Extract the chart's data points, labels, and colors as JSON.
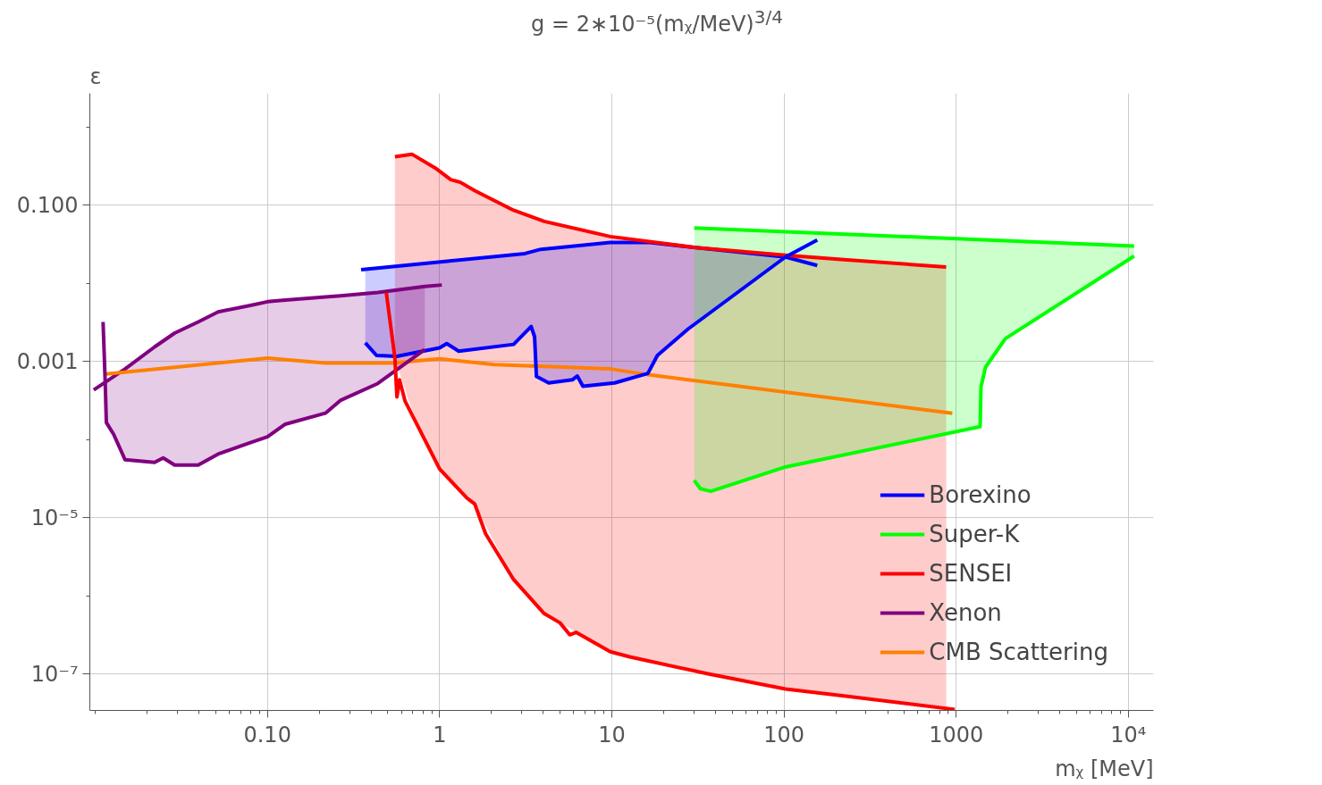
{
  "chart_data": {
    "type": "line",
    "title": "g = 2∗10⁻⁵(mᵪ/MeV)$^{3/4}$",
    "xlabel": "mᵪ [MeV]",
    "ylabel": "ε",
    "log": "xy",
    "grid": true,
    "legend": "bottom right",
    "line_style": "solid",
    "marker": "none",
    "xlim": [
      0.0093,
      14000
    ],
    "ylim": [
      3.4e-08,
      2.7
    ],
    "xticks": [
      {
        "value": 0.1,
        "label": "0.10"
      },
      1,
      10,
      100,
      1000,
      {
        "value": 10000,
        "label": "10⁴"
      }
    ],
    "yticks": [
      {
        "value": 1e-07,
        "label": "10⁻⁷"
      },
      {
        "value": 1e-05,
        "label": "10⁻⁵"
      },
      {
        "value": 0.001,
        "label": "0.001"
      },
      {
        "value": 0.1,
        "label": "0.100"
      }
    ],
    "series": [
      {
        "name": "Borexino",
        "color": "#0000ff",
        "x": [
          0.35,
          1.11,
          3.13,
          3.87,
          9.8,
          16.6,
          30.8,
          102,
          156
        ],
        "values": [
          0.0149,
          0.0192,
          0.024,
          0.0272,
          0.0333,
          0.0333,
          0.0286,
          0.0217,
          0.0169
        ]
      },
      {
        "name": "Super-K",
        "color": "#00ff00",
        "x": [
          30.1,
          10800
        ],
        "values": [
          0.051,
          0.03
        ]
      },
      {
        "name": "SENSEI",
        "color": "#ff0000",
        "x": [
          0.55,
          0.69,
          0.94,
          1.16,
          1.32,
          1.6,
          2.69,
          4.05,
          9.8,
          30.8,
          102,
          223,
          875
        ],
        "values": [
          0.417,
          0.449,
          0.3,
          0.212,
          0.196,
          0.153,
          0.086,
          0.062,
          0.0396,
          0.0286,
          0.0229,
          0.0201,
          0.0161
        ],
        "lower": [
          0.0011,
          0.00024,
          5.4e-05,
          2.9e-05,
          2.2e-05,
          1.49e-05,
          1.61e-06,
          5.9e-07,
          1.92e-07,
          1.07e-07,
          6.4e-08,
          5.2e-08,
          3.7e-08
        ],
        "upper": [
          0.417,
          0.449,
          0.3,
          0.212,
          0.196,
          0.153,
          0.086,
          0.062,
          0.0396,
          0.0286,
          0.0229,
          0.0201,
          0.0161
        ]
      },
      {
        "name": "Xenon",
        "color": "#800080",
        "x": [
          0.0098,
          0.0149,
          0.0221,
          0.0289,
          0.0396,
          0.0517,
          0.0796,
          0.1,
          0.127,
          0.217,
          0.265,
          0.437,
          0.82,
          1.03
        ],
        "values": [
          0.00043,
          0.0008,
          0.00153,
          0.0023,
          0.0032,
          0.0043,
          0.0052,
          0.0058,
          0.0061,
          0.0067,
          0.0069,
          0.0076,
          0.0091,
          0.0095
        ]
      },
      {
        "name": "CMB Scattering",
        "color": "#ff8000",
        "x": [
          0.0116,
          0.0289,
          0.1,
          0.217,
          0.533,
          1.0,
          2.08,
          9.8,
          16.6,
          949
        ],
        "values": [
          0.00069,
          0.00084,
          0.0011,
          0.00095,
          0.00095,
          0.00108,
          0.00091,
          0.0008,
          0.00067,
          0.000217
        ]
      },
      {
        "color": "#0000ff",
        "x": [
          0.37,
          0.43,
          0.565,
          1,
          1.1,
          1.29,
          2.69,
          3.4,
          3.56,
          3.65,
          4.3,
          5.9,
          6.3,
          6.8,
          10.4,
          16.2,
          18.4,
          27.7,
          102,
          156
        ],
        "values": [
          0.00173,
          0.00119,
          0.00116,
          0.00149,
          0.00169,
          0.00135,
          0.00165,
          0.0028,
          0.00207,
          0.00064,
          0.00053,
          0.00058,
          0.00065,
          0.00048,
          0.00053,
          0.0007,
          0.00119,
          0.00259,
          0.0217,
          0.0358
        ],
        "lower": [
          0.00173,
          0.00119,
          0.00116,
          0.00149,
          0.00169,
          0.00135,
          0.00165,
          0.0028,
          0.00207,
          0.00064,
          0.00053,
          0.00058,
          0.00065,
          0.00048,
          0.00053,
          0.0007,
          0.00119,
          0.00259,
          0.0217,
          null
        ],
        "upper": [
          0.015,
          0.0155,
          0.0165,
          0.0188,
          0.0192,
          0.0197,
          0.0232,
          0.025,
          0.0258,
          0.026,
          0.028,
          0.03,
          0.0305,
          0.031,
          0.0333,
          0.0333,
          0.033,
          0.0295,
          0.0217,
          null
        ]
      },
      {
        "color": "#00ff00",
        "x": [
          30.1,
          32.7,
          37.6,
          100,
          1378,
          1394,
          1479,
          1932,
          10800
        ],
        "values": [
          3e-05,
          2.34e-05,
          2.17e-05,
          4.4e-05,
          0.000146,
          0.00047,
          0.00084,
          0.00196,
          0.0223
        ],
        "lower": [
          3e-05,
          2.34e-05,
          2.17e-05,
          4.4e-05,
          0.000146,
          0.00047,
          0.00084,
          0.00196,
          0.0223
        ],
        "upper": [
          0.051,
          0.0506,
          0.0499,
          0.0457,
          0.0361,
          0.0361,
          0.0359,
          0.0351,
          0.03
        ]
      },
      {
        "color": "#800080",
        "x": [
          0.0111,
          0.0114,
          0.0116,
          0.0128,
          0.0149,
          0.0221,
          0.0248,
          0.0289,
          0.0396,
          0.0517,
          0.0796,
          0.1,
          0.127,
          0.217,
          0.265,
          0.437,
          0.82
        ],
        "values": [
          0.0032,
          0.00062,
          0.000165,
          0.000116,
          5.5e-05,
          5.1e-05,
          5.8e-05,
          4.7e-05,
          4.7e-05,
          6.5e-05,
          9.1e-05,
          0.000108,
          0.000157,
          0.000217,
          0.000316,
          0.00052,
          0.00142
        ],
        "lower": [
          null,
          null,
          0.000165,
          0.000116,
          5.5e-05,
          5.1e-05,
          5.8e-05,
          4.7e-05,
          4.7e-05,
          6.5e-05,
          9.1e-05,
          0.000108,
          0.000157,
          0.000217,
          0.000316,
          0.00052,
          0.00142
        ],
        "upper": [
          null,
          null,
          0.00057,
          0.00065,
          0.0008,
          0.00153,
          0.00182,
          0.0023,
          0.0032,
          0.0043,
          0.0052,
          0.0058,
          0.0061,
          0.0067,
          0.0069,
          0.0076,
          0.0091
        ]
      },
      {
        "color": "#ff0000",
        "x": [
          0.49,
          0.55,
          0.565,
          0.585,
          0.63,
          1,
          1.44,
          1.6,
          1.85,
          2.69,
          4.05,
          5.0,
          5.7,
          6.2,
          9.8,
          12.7,
          36.2,
          102,
          223,
          982
        ],
        "values": [
          0.0076,
          0.0011,
          0.00035,
          0.00058,
          0.00031,
          4.2e-05,
          1.78e-05,
          1.49e-05,
          6.2e-06,
          1.61e-06,
          5.9e-07,
          4.5e-07,
          3.16e-07,
          3.4e-07,
          1.92e-07,
          1.65e-07,
          1e-07,
          6.4e-08,
          5.2e-08,
          3.5e-08
        ]
      }
    ]
  }
}
